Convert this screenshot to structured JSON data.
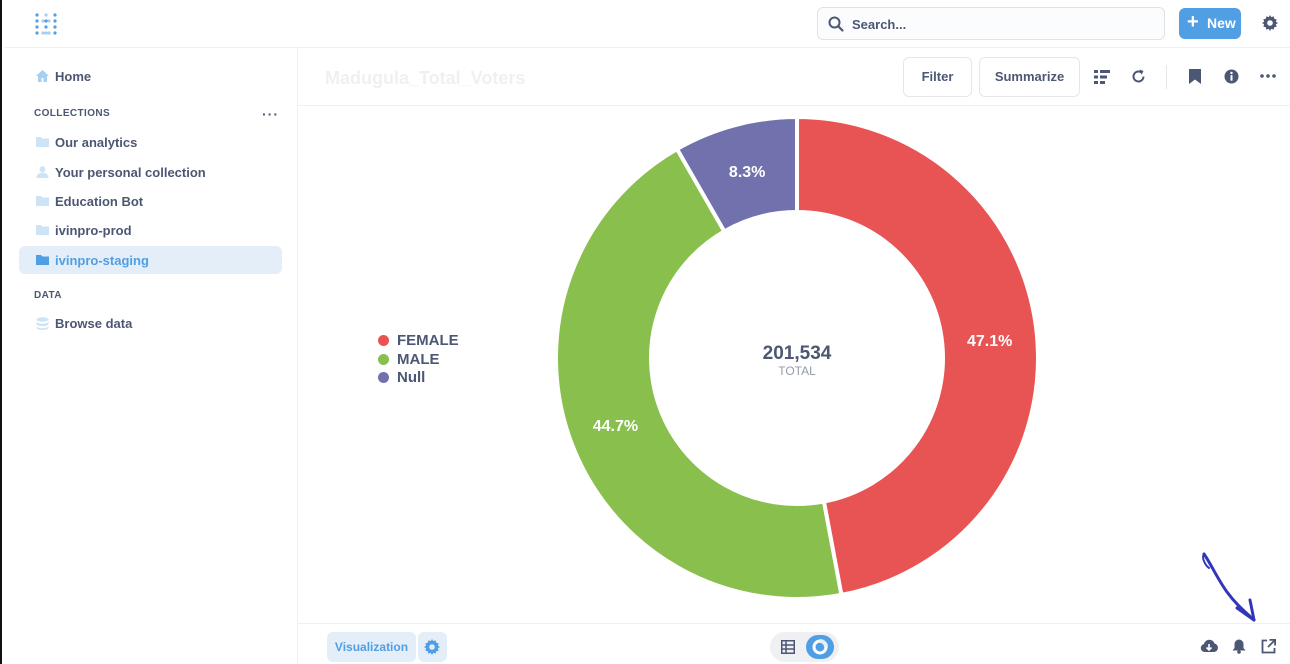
{
  "header": {
    "search_placeholder": "Search...",
    "new_label": "New"
  },
  "sidebar": {
    "home_label": "Home",
    "collections_heading": "COLLECTIONS",
    "collections": [
      {
        "label": "Our analytics",
        "icon": "folder-icon"
      },
      {
        "label": "Your personal collection",
        "icon": "person-icon"
      },
      {
        "label": "Education Bot",
        "icon": "folder-icon"
      },
      {
        "label": "ivinpro-prod",
        "icon": "folder-icon"
      },
      {
        "label": "ivinpro-staging",
        "icon": "folder-icon",
        "active": true
      }
    ],
    "data_heading": "DATA",
    "browse_label": "Browse data"
  },
  "question": {
    "title": "Madugula_Total_Voters",
    "filter_label": "Filter",
    "summarize_label": "Summarize"
  },
  "colors": {
    "accent": "#509ee3",
    "female": "#e85454",
    "male": "#88bf4d",
    "null": "#7172ad"
  },
  "chart_data": {
    "type": "pie",
    "donut": true,
    "total_value": "201,534",
    "total_label": "TOTAL",
    "legend_position": "left",
    "slices": [
      {
        "name": "FEMALE",
        "percent": 47.1,
        "label": "47.1%",
        "color": "#e85454"
      },
      {
        "name": "MALE",
        "percent": 44.7,
        "label": "44.7%",
        "color": "#88bf4d"
      },
      {
        "name": "Null",
        "percent": 8.3,
        "label": "8.3%",
        "color": "#7172ad"
      }
    ]
  },
  "footer": {
    "visualization_label": "Visualization"
  }
}
